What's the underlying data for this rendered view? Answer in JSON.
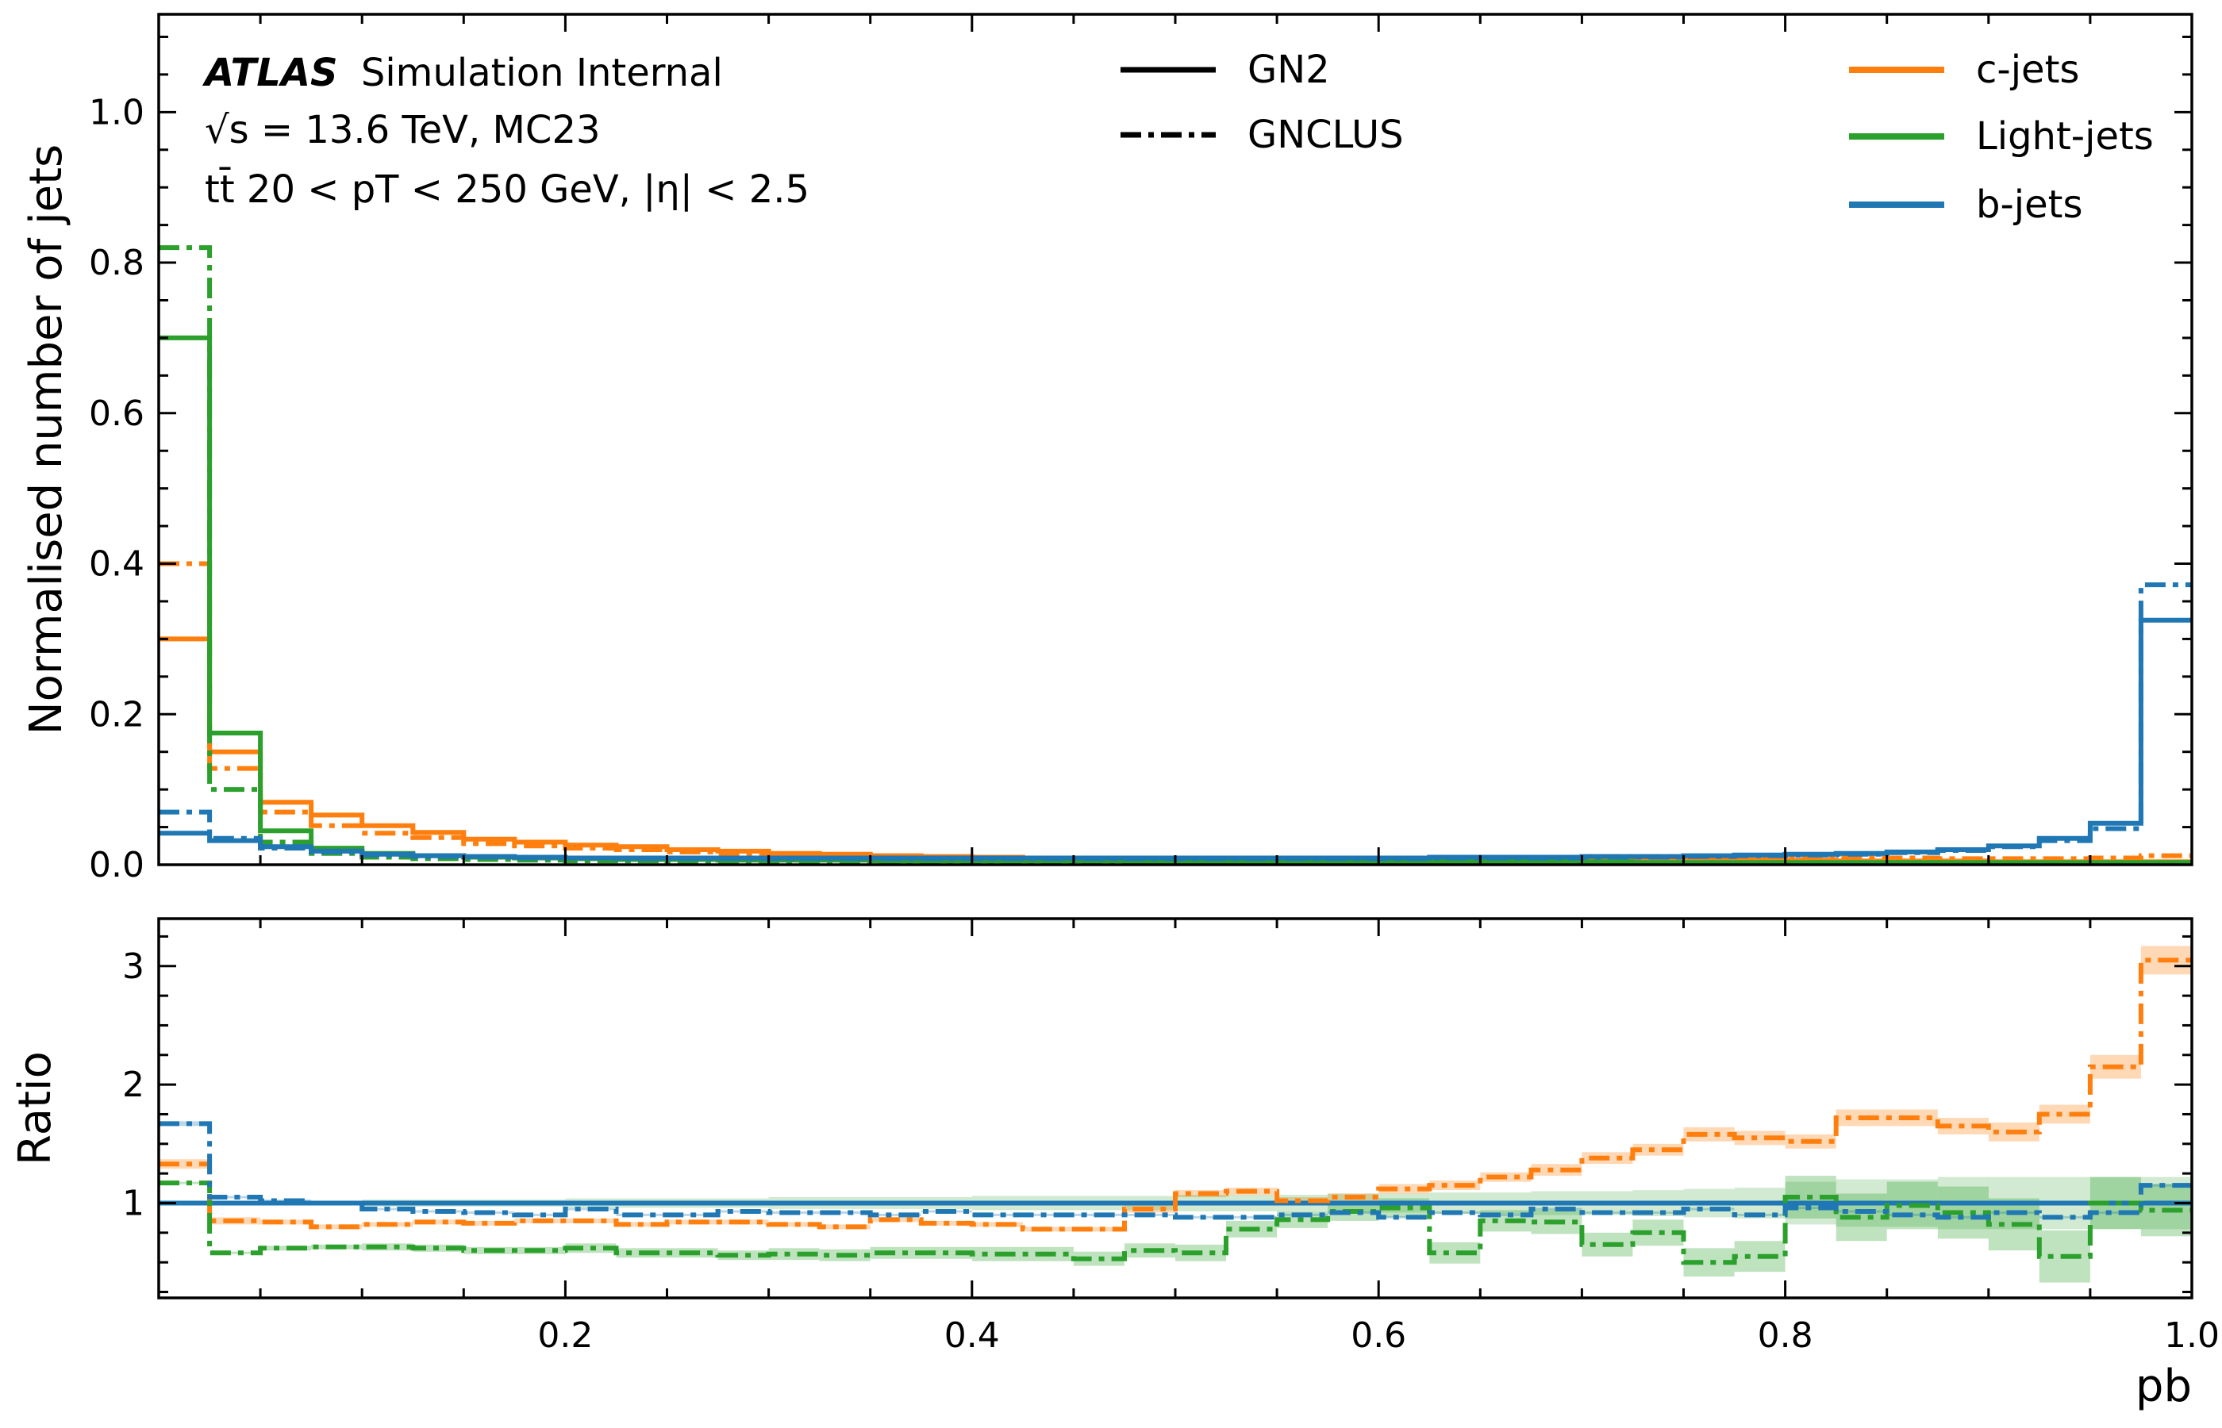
{
  "chart_data": [
    {
      "type": "line",
      "panel": "main",
      "ylabel": "Normalised number of jets",
      "xlim": [
        0.0,
        1.0
      ],
      "ylim": [
        0.0,
        1.13
      ],
      "yticks": [
        "0.0",
        "0.2",
        "0.4",
        "0.6",
        "0.8",
        "1.0"
      ],
      "ytick_values": [
        0.0,
        0.2,
        0.4,
        0.6,
        0.8,
        1.0
      ],
      "bin_edges": [
        0.0,
        0.025,
        0.05,
        0.075,
        0.1,
        0.125,
        0.15,
        0.175,
        0.2,
        0.225,
        0.25,
        0.275,
        0.3,
        0.325,
        0.35,
        0.375,
        0.4,
        0.425,
        0.45,
        0.475,
        0.5,
        0.525,
        0.55,
        0.575,
        0.6,
        0.625,
        0.65,
        0.675,
        0.7,
        0.725,
        0.75,
        0.775,
        0.8,
        0.825,
        0.85,
        0.875,
        0.9,
        0.925,
        0.95,
        0.975,
        1.0
      ],
      "series": [
        {
          "name": "c-jets",
          "tagger": "GN2",
          "color": "#ff7f0e",
          "style": "solid",
          "values": [
            0.3,
            0.15,
            0.083,
            0.066,
            0.052,
            0.043,
            0.034,
            0.03,
            0.026,
            0.024,
            0.02,
            0.018,
            0.015,
            0.014,
            0.012,
            0.011,
            0.01,
            0.009,
            0.009,
            0.009,
            0.008,
            0.008,
            0.008,
            0.008,
            0.008,
            0.007,
            0.007,
            0.007,
            0.007,
            0.006,
            0.006,
            0.006,
            0.006,
            0.005,
            0.005,
            0.005,
            0.004,
            0.004,
            0.004,
            0.004
          ]
        },
        {
          "name": "c-jets",
          "tagger": "GNCLUS",
          "color": "#ff7f0e",
          "style": "dashdot",
          "values": [
            0.4,
            0.128,
            0.07,
            0.052,
            0.042,
            0.036,
            0.028,
            0.025,
            0.022,
            0.02,
            0.017,
            0.015,
            0.012,
            0.011,
            0.01,
            0.009,
            0.008,
            0.007,
            0.007,
            0.008,
            0.009,
            0.009,
            0.009,
            0.009,
            0.009,
            0.009,
            0.009,
            0.01,
            0.011,
            0.011,
            0.011,
            0.011,
            0.01,
            0.009,
            0.009,
            0.008,
            0.008,
            0.008,
            0.009,
            0.012
          ]
        },
        {
          "name": "Light-jets",
          "tagger": "GN2",
          "color": "#2ca02c",
          "style": "solid",
          "values": [
            0.7,
            0.175,
            0.045,
            0.022,
            0.015,
            0.012,
            0.01,
            0.009,
            0.008,
            0.007,
            0.007,
            0.006,
            0.006,
            0.006,
            0.005,
            0.005,
            0.005,
            0.005,
            0.005,
            0.004,
            0.004,
            0.004,
            0.004,
            0.004,
            0.004,
            0.004,
            0.004,
            0.004,
            0.004,
            0.003,
            0.003,
            0.003,
            0.003,
            0.003,
            0.003,
            0.003,
            0.003,
            0.003,
            0.003,
            0.003
          ]
        },
        {
          "name": "Light-jets",
          "tagger": "GNCLUS",
          "color": "#2ca02c",
          "style": "dashdot",
          "values": [
            0.82,
            0.1,
            0.03,
            0.015,
            0.01,
            0.008,
            0.007,
            0.006,
            0.005,
            0.005,
            0.004,
            0.004,
            0.004,
            0.004,
            0.003,
            0.003,
            0.003,
            0.003,
            0.003,
            0.002,
            0.002,
            0.003,
            0.003,
            0.003,
            0.003,
            0.003,
            0.003,
            0.003,
            0.003,
            0.002,
            0.002,
            0.002,
            0.003,
            0.003,
            0.003,
            0.002,
            0.002,
            0.002,
            0.003,
            0.003
          ]
        },
        {
          "name": "b-jets",
          "tagger": "GN2",
          "color": "#1f77b4",
          "style": "solid",
          "values": [
            0.042,
            0.032,
            0.024,
            0.018,
            0.014,
            0.012,
            0.011,
            0.01,
            0.009,
            0.009,
            0.009,
            0.009,
            0.009,
            0.009,
            0.009,
            0.009,
            0.009,
            0.009,
            0.009,
            0.009,
            0.009,
            0.009,
            0.009,
            0.009,
            0.009,
            0.01,
            0.01,
            0.01,
            0.011,
            0.011,
            0.012,
            0.013,
            0.014,
            0.015,
            0.017,
            0.02,
            0.025,
            0.035,
            0.055,
            0.325
          ]
        },
        {
          "name": "b-jets",
          "tagger": "GNCLUS",
          "color": "#1f77b4",
          "style": "dashdot",
          "values": [
            0.07,
            0.035,
            0.022,
            0.017,
            0.013,
            0.011,
            0.01,
            0.009,
            0.009,
            0.008,
            0.008,
            0.008,
            0.008,
            0.008,
            0.008,
            0.008,
            0.008,
            0.008,
            0.008,
            0.008,
            0.008,
            0.008,
            0.008,
            0.008,
            0.008,
            0.009,
            0.009,
            0.009,
            0.01,
            0.01,
            0.011,
            0.012,
            0.013,
            0.014,
            0.016,
            0.019,
            0.024,
            0.032,
            0.048,
            0.372
          ]
        }
      ]
    },
    {
      "type": "line",
      "panel": "ratio",
      "xlabel": "pb",
      "ylabel": "Ratio",
      "xlim": [
        0.0,
        1.0
      ],
      "ylim": [
        0.2,
        3.4
      ],
      "xticks": [
        "0.2",
        "0.4",
        "0.6",
        "0.8",
        "1.0"
      ],
      "xtick_values": [
        0.2,
        0.4,
        0.6,
        0.8,
        1.0
      ],
      "yticks": [
        "1",
        "2",
        "3"
      ],
      "ytick_values": [
        1,
        2,
        3
      ],
      "bin_edges": [
        0.0,
        0.025,
        0.05,
        0.075,
        0.1,
        0.125,
        0.15,
        0.175,
        0.2,
        0.225,
        0.25,
        0.275,
        0.3,
        0.325,
        0.35,
        0.375,
        0.4,
        0.425,
        0.45,
        0.475,
        0.5,
        0.525,
        0.55,
        0.575,
        0.6,
        0.625,
        0.65,
        0.675,
        0.7,
        0.725,
        0.75,
        0.775,
        0.8,
        0.825,
        0.85,
        0.875,
        0.9,
        0.925,
        0.95,
        0.975,
        1.0
      ],
      "series": [
        {
          "name": "c-jets",
          "tagger": "GNCLUS",
          "color": "#ff7f0e",
          "style": "dashdot",
          "values": [
            1.33,
            0.85,
            0.84,
            0.8,
            0.82,
            0.84,
            0.83,
            0.85,
            0.85,
            0.82,
            0.84,
            0.84,
            0.82,
            0.8,
            0.86,
            0.83,
            0.82,
            0.78,
            0.78,
            0.95,
            1.08,
            1.1,
            1.02,
            1.05,
            1.12,
            1.15,
            1.22,
            1.28,
            1.38,
            1.45,
            1.58,
            1.55,
            1.52,
            1.72,
            1.72,
            1.65,
            1.6,
            1.75,
            2.15,
            3.05
          ],
          "band": [
            0.04,
            0.03,
            0.02,
            0.02,
            0.02,
            0.02,
            0.02,
            0.02,
            0.02,
            0.02,
            0.02,
            0.02,
            0.02,
            0.02,
            0.02,
            0.02,
            0.02,
            0.02,
            0.02,
            0.03,
            0.03,
            0.03,
            0.03,
            0.03,
            0.04,
            0.04,
            0.04,
            0.05,
            0.05,
            0.05,
            0.06,
            0.06,
            0.06,
            0.07,
            0.07,
            0.07,
            0.08,
            0.08,
            0.1,
            0.12
          ]
        },
        {
          "name": "Light-jets",
          "tagger": "GNCLUS",
          "color": "#2ca02c",
          "style": "dashdot",
          "values": [
            1.17,
            0.58,
            0.62,
            0.63,
            0.63,
            0.62,
            0.6,
            0.6,
            0.62,
            0.58,
            0.58,
            0.56,
            0.57,
            0.56,
            0.58,
            0.58,
            0.57,
            0.57,
            0.53,
            0.6,
            0.58,
            0.78,
            0.86,
            0.93,
            0.96,
            0.58,
            0.85,
            0.84,
            0.65,
            0.75,
            0.5,
            0.55,
            1.05,
            0.88,
            0.98,
            0.92,
            0.82,
            0.55,
            1.0,
            0.94
          ],
          "band": [
            0.01,
            0.01,
            0.02,
            0.02,
            0.03,
            0.03,
            0.03,
            0.03,
            0.04,
            0.04,
            0.04,
            0.04,
            0.05,
            0.05,
            0.05,
            0.05,
            0.06,
            0.06,
            0.06,
            0.06,
            0.07,
            0.07,
            0.07,
            0.08,
            0.08,
            0.09,
            0.09,
            0.1,
            0.1,
            0.11,
            0.12,
            0.13,
            0.18,
            0.2,
            0.2,
            0.22,
            0.22,
            0.22,
            0.22,
            0.22
          ]
        },
        {
          "name": "b-jets",
          "tagger": "GNCLUS",
          "color": "#1f77b4",
          "style": "dashdot",
          "values": [
            1.67,
            1.05,
            1.02,
            1.0,
            0.95,
            0.93,
            0.92,
            0.9,
            0.95,
            0.9,
            0.9,
            0.93,
            0.92,
            0.92,
            0.9,
            0.93,
            0.9,
            0.9,
            0.9,
            0.9,
            0.88,
            0.88,
            0.9,
            0.92,
            0.88,
            0.92,
            0.9,
            0.95,
            0.92,
            0.92,
            0.95,
            0.9,
            0.96,
            0.93,
            0.9,
            0.88,
            0.92,
            0.88,
            0.92,
            1.15
          ],
          "band": [
            0.02,
            0.01,
            0.01,
            0.01,
            0.01,
            0.01,
            0.01,
            0.01,
            0.01,
            0.01,
            0.01,
            0.01,
            0.01,
            0.01,
            0.01,
            0.01,
            0.01,
            0.01,
            0.01,
            0.01,
            0.01,
            0.01,
            0.01,
            0.01,
            0.01,
            0.01,
            0.01,
            0.01,
            0.01,
            0.01,
            0.01,
            0.01,
            0.01,
            0.01,
            0.01,
            0.01,
            0.01,
            0.01,
            0.01,
            0.01
          ]
        }
      ],
      "reference": {
        "value": 1.0,
        "color": "#1f77b4"
      }
    }
  ],
  "annotation": {
    "atlas": "ATLAS",
    "atlas_suffix": "Simulation Internal",
    "line2": "√s = 13.6 TeV, MC23",
    "line3": "tt̄ 20 < pT < 250 GeV, |η| < 2.5"
  },
  "legend": {
    "styles": [
      {
        "label": "GN2",
        "style": "solid"
      },
      {
        "label": "GNCLUS",
        "style": "dashdot"
      }
    ],
    "flavours": [
      {
        "label": "c-jets",
        "color": "#ff7f0e"
      },
      {
        "label": "Light-jets",
        "color": "#2ca02c"
      },
      {
        "label": "b-jets",
        "color": "#1f77b4"
      }
    ]
  }
}
